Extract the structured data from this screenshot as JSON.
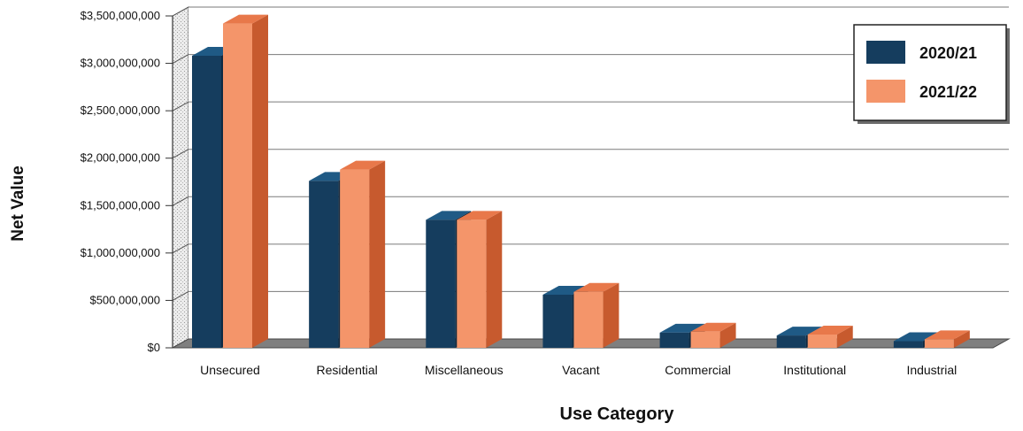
{
  "chart_data": {
    "type": "bar",
    "title": "",
    "xlabel": "Use Category",
    "ylabel": "Net Value",
    "ylim": [
      0,
      3500000000
    ],
    "yticks": [
      0,
      500000000,
      1000000000,
      1500000000,
      2000000000,
      2500000000,
      3000000000,
      3500000000
    ],
    "ytick_labels": [
      "$0",
      "$500,000,000",
      "$1,000,000,000",
      "$1,500,000,000",
      "$2,000,000,000",
      "$2,500,000,000",
      "$3,000,000,000",
      "$3,500,000,000"
    ],
    "categories": [
      "Unsecured",
      "Residential",
      "Miscellaneous",
      "Vacant",
      "Commercial",
      "Institutional",
      "Industrial"
    ],
    "series": [
      {
        "name": "2020/21",
        "values": [
          3080000000,
          1760000000,
          1350000000,
          560000000,
          160000000,
          130000000,
          70000000
        ]
      },
      {
        "name": "2021/22",
        "values": [
          3420000000,
          1880000000,
          1350000000,
          590000000,
          170000000,
          140000000,
          90000000
        ]
      }
    ],
    "grid": true,
    "legend_position": "top-right",
    "colors": {
      "series_front": [
        "#153d5e",
        "#f4956a"
      ],
      "series_top": [
        "#1f5a85",
        "#e8784a"
      ],
      "series_side": [
        "#0e2a42",
        "#c75a2e"
      ],
      "wall": "#d9d9d9",
      "floor": "#7f7f7f",
      "grid": "#7a7a7a"
    }
  }
}
